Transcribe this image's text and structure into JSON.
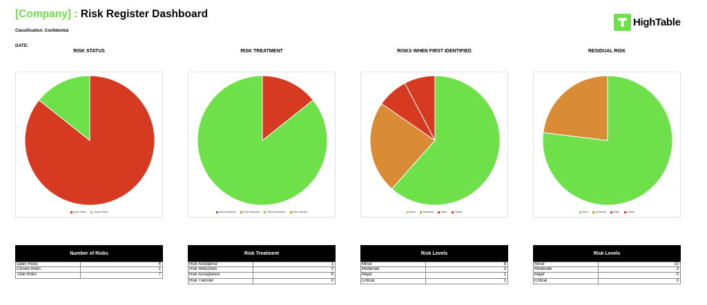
{
  "header": {
    "company": "[Company]",
    "separator": ":",
    "title": "Risk Register Dashboard",
    "classification": "Classification: Confidential",
    "date_label": "DATE:",
    "logo_text": "HighTable"
  },
  "colors": {
    "red": "#d63b22",
    "green": "#6ee04a",
    "orange": "#d98b36",
    "accent": "#6ee04a"
  },
  "chart_data": [
    {
      "type": "pie",
      "title": "RISK STATUS",
      "categories": [
        "Open Risks",
        "Closed Risks"
      ],
      "values": [
        6,
        1
      ],
      "colors": [
        "#d63b22",
        "#6ee04a"
      ],
      "legend_position": "bottom"
    },
    {
      "type": "pie",
      "title": "RISK TREATMENT",
      "categories": [
        "Risk Avoidance",
        "Risk Reduction",
        "Risk Acceptance",
        "Risk Transfer"
      ],
      "values": [
        1,
        0,
        6,
        0
      ],
      "colors": [
        "#d63b22",
        "#d98b36",
        "#6ee04a",
        "#d98b36"
      ],
      "legend_position": "bottom"
    },
    {
      "type": "pie",
      "title": "RISKS WHEN FIRST IDENTIFIED",
      "categories": [
        "Minor",
        "Moderate",
        "Major",
        "Critical"
      ],
      "values": [
        8,
        3,
        1,
        1
      ],
      "colors": [
        "#6ee04a",
        "#d98b36",
        "#d63b22",
        "#d63b22"
      ],
      "legend_position": "bottom"
    },
    {
      "type": "pie",
      "title": "RESIDUAL RISK",
      "categories": [
        "Minor",
        "Moderate",
        "Major",
        "Critical"
      ],
      "values": [
        10,
        3,
        0,
        0
      ],
      "colors": [
        "#6ee04a",
        "#d98b36",
        "#d63b22",
        "#d63b22"
      ],
      "legend_position": "bottom"
    }
  ],
  "tables": [
    {
      "title": "Number of Risks",
      "rows": [
        {
          "label": "Open Risks",
          "value": "6"
        },
        {
          "label": "Closed Risks",
          "value": "1"
        },
        {
          "label": "Total Risks",
          "value": "7"
        }
      ]
    },
    {
      "title": "Risk Treatment",
      "rows": [
        {
          "label": "Risk Avoidance",
          "value": "1"
        },
        {
          "label": "Risk Reduction",
          "value": "0"
        },
        {
          "label": "Risk Acceptance",
          "value": "6"
        },
        {
          "label": "Risk Transfer",
          "value": "0"
        }
      ]
    },
    {
      "title": "Risk Levels",
      "rows": [
        {
          "label": "Minor",
          "value": "8"
        },
        {
          "label": "Moderate",
          "value": "3"
        },
        {
          "label": "Major",
          "value": "1"
        },
        {
          "label": "Critical",
          "value": "1"
        }
      ]
    },
    {
      "title": "Risk Levels",
      "rows": [
        {
          "label": "Minor",
          "value": "10"
        },
        {
          "label": "Moderate",
          "value": "3"
        },
        {
          "label": "Major",
          "value": "0"
        },
        {
          "label": "Critical",
          "value": "0"
        }
      ]
    }
  ]
}
